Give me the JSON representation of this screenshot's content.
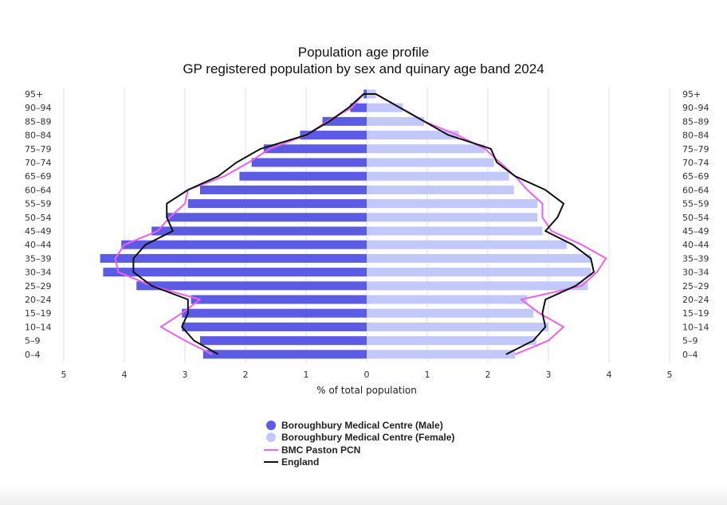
{
  "chart_data": {
    "type": "bar",
    "orientation": "horizontal-pyramid",
    "title": "Population age profile",
    "subtitle": "GP registered population by sex and quinary age band 2024",
    "xlabel": "% of total population",
    "xlim": [
      -5,
      5
    ],
    "xticks": [
      "5",
      "4",
      "3",
      "2",
      "1",
      "0",
      "1",
      "2",
      "3",
      "4",
      "5"
    ],
    "grid": true,
    "legend_position": "bottom",
    "categories": [
      "0–4",
      "5–9",
      "10–14",
      "15–19",
      "20–24",
      "25–29",
      "30–34",
      "35–39",
      "40–44",
      "45–49",
      "50–54",
      "55–59",
      "60–64",
      "65–69",
      "70–74",
      "75–79",
      "80–84",
      "85–89",
      "90–94",
      "95+"
    ],
    "series": [
      {
        "name": "Boroughbury Medical Centre (Male)",
        "kind": "bar",
        "side": "left",
        "color": "#5b5be6",
        "values": [
          2.7,
          2.75,
          3.05,
          3.05,
          2.9,
          3.8,
          4.35,
          4.4,
          4.05,
          3.55,
          3.3,
          2.95,
          2.75,
          2.1,
          1.9,
          1.7,
          1.1,
          0.73,
          0.27,
          0.05
        ]
      },
      {
        "name": "Boroughbury Medical Centre (Female)",
        "kind": "bar",
        "side": "right",
        "color": "#c3c8fa",
        "values": [
          2.45,
          2.8,
          3.0,
          2.75,
          2.65,
          3.65,
          3.7,
          3.7,
          3.3,
          2.9,
          2.82,
          2.82,
          2.43,
          2.35,
          2.1,
          1.95,
          1.52,
          0.95,
          0.6,
          0.15
        ]
      },
      {
        "name": "BMC Paston PCN",
        "kind": "line",
        "color": "#f060f0",
        "male": [
          2.55,
          3.0,
          3.4,
          3.05,
          2.75,
          3.55,
          4.1,
          4.15,
          4.0,
          3.45,
          3.25,
          3.0,
          2.95,
          2.35,
          1.95,
          1.6,
          1.0,
          0.65,
          0.25,
          0.05
        ],
        "female": [
          2.45,
          3.0,
          3.25,
          2.85,
          2.55,
          3.55,
          3.8,
          3.95,
          3.55,
          3.05,
          2.9,
          2.9,
          2.65,
          2.45,
          2.2,
          1.95,
          1.5,
          0.95,
          0.55,
          0.15
        ]
      },
      {
        "name": "England",
        "kind": "line",
        "color": "#111111",
        "male": [
          2.45,
          2.85,
          3.05,
          2.95,
          2.95,
          3.55,
          3.85,
          3.85,
          3.65,
          3.2,
          3.3,
          3.3,
          2.95,
          2.45,
          2.15,
          1.75,
          1.0,
          0.62,
          0.3,
          0.05
        ],
        "female": [
          2.3,
          2.75,
          2.95,
          2.9,
          2.95,
          3.45,
          3.75,
          3.7,
          3.4,
          2.95,
          3.15,
          3.25,
          2.95,
          2.45,
          2.15,
          2.05,
          1.35,
          0.95,
          0.55,
          0.15
        ]
      }
    ]
  },
  "style": {
    "male_bar": "#5b5be6",
    "female_bar": "#c3c8fa",
    "pcn_line": "#f060f0",
    "england_line": "#111111",
    "grid_color": "#e2e2e2",
    "axis_text": "#333333"
  }
}
